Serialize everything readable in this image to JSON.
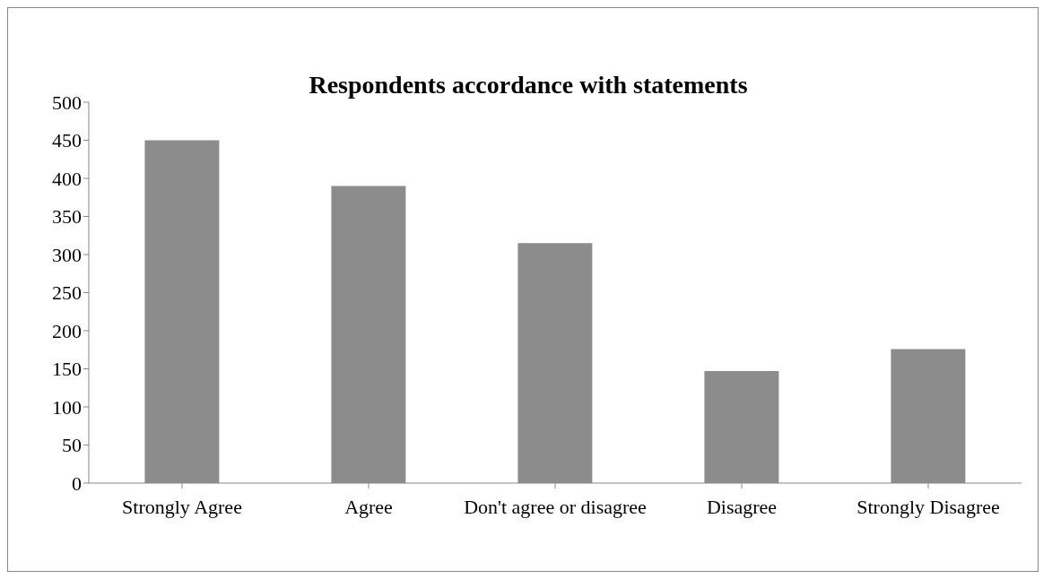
{
  "chart_data": {
    "type": "bar",
    "title": "Respondents accordance with statements",
    "categories": [
      "Strongly Agree",
      "Agree",
      "Don't agree or disagree",
      "Disagree",
      "Strongly Disagree"
    ],
    "values": [
      450,
      390,
      315,
      147,
      176
    ],
    "color": "#8c8c8c",
    "ylim": [
      0,
      500
    ],
    "yticks": [
      0,
      50,
      100,
      150,
      200,
      250,
      300,
      350,
      400,
      450,
      500
    ],
    "grid": false,
    "legend": false
  }
}
